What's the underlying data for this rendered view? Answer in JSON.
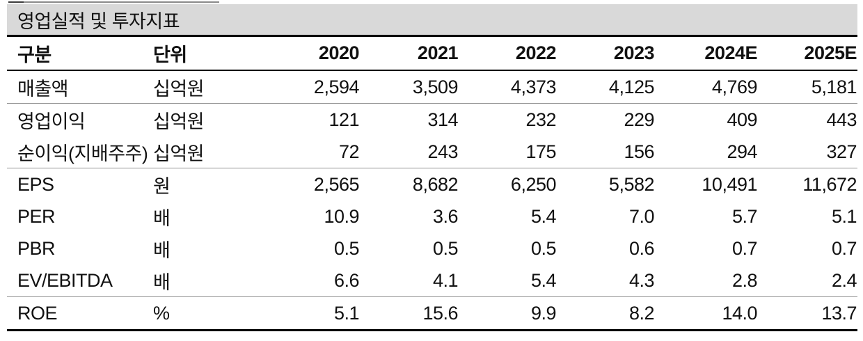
{
  "title": "영업실적 및 투자지표",
  "colors": {
    "title_bar_bg": "#d9d9d9",
    "rule_dark": "#000000",
    "rule_light": "#909090",
    "text": "#111111"
  },
  "table": {
    "columns": [
      "구분",
      "단위",
      "2020",
      "2021",
      "2022",
      "2023",
      "2024E",
      "2025E"
    ],
    "sections": [
      {
        "rows": [
          {
            "label": "매출액",
            "unit": "십억원",
            "values": [
              "2,594",
              "3,509",
              "4,373",
              "4,125",
              "4,769",
              "5,181"
            ]
          }
        ]
      },
      {
        "rows": [
          {
            "label": "영업이익",
            "unit": "십억원",
            "values": [
              "121",
              "314",
              "232",
              "229",
              "409",
              "443"
            ]
          },
          {
            "label": "순이익(지배주주)",
            "unit": "십억원",
            "values": [
              "72",
              "243",
              "175",
              "156",
              "294",
              "327"
            ]
          }
        ]
      },
      {
        "rows": [
          {
            "label": "EPS",
            "unit": "원",
            "values": [
              "2,565",
              "8,682",
              "6,250",
              "5,582",
              "10,491",
              "11,672"
            ]
          },
          {
            "label": "PER",
            "unit": "배",
            "values": [
              "10.9",
              "3.6",
              "5.4",
              "7.0",
              "5.7",
              "5.1"
            ]
          },
          {
            "label": "PBR",
            "unit": "배",
            "values": [
              "0.5",
              "0.5",
              "0.5",
              "0.6",
              "0.7",
              "0.7"
            ]
          },
          {
            "label": "EV/EBITDA",
            "unit": "배",
            "values": [
              "6.6",
              "4.1",
              "5.4",
              "4.3",
              "2.8",
              "2.4"
            ]
          }
        ]
      },
      {
        "rows": [
          {
            "label": "ROE",
            "unit": "%",
            "values": [
              "5.1",
              "15.6",
              "9.9",
              "8.2",
              "14.0",
              "13.7"
            ]
          }
        ]
      }
    ]
  }
}
